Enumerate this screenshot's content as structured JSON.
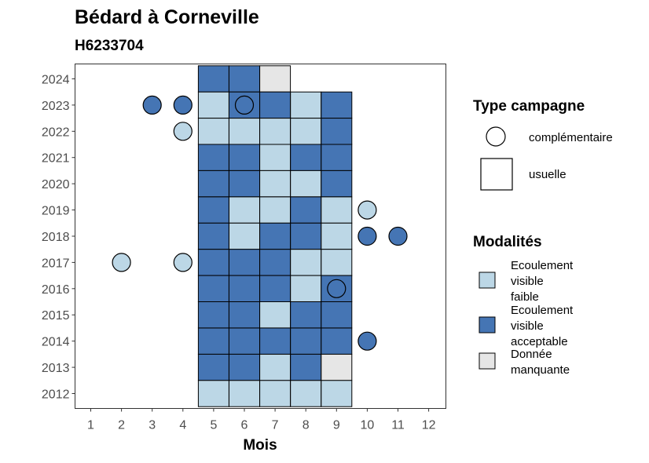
{
  "chart_data": {
    "type": "heatmap",
    "title": "Bédard à Corneville",
    "subtitle": "H6233704",
    "xlabel": "Mois",
    "ylabel": "",
    "x_ticks": [
      "1",
      "2",
      "3",
      "4",
      "5",
      "6",
      "7",
      "8",
      "9",
      "10",
      "11",
      "12"
    ],
    "y_ticks": [
      "2012",
      "2013",
      "2014",
      "2015",
      "2016",
      "2017",
      "2018",
      "2019",
      "2020",
      "2021",
      "2022",
      "2023",
      "2024"
    ],
    "xlim": [
      0.5,
      12.5
    ],
    "ylim": [
      2011.5,
      2024.5
    ],
    "colors": {
      "faible": "#bcd7e6",
      "acceptable": "#4575b4",
      "manquante": "#e6e6e6"
    },
    "legend_type": {
      "title": "Type campagne",
      "entries": [
        {
          "key": "circle",
          "label": "complémentaire"
        },
        {
          "key": "square",
          "label": "usuelle"
        }
      ]
    },
    "legend_modalites": {
      "title": "Modalités",
      "entries": [
        {
          "key": "faible",
          "lines": [
            "Ecoulement",
            "visible",
            "faible"
          ]
        },
        {
          "key": "acceptable",
          "lines": [
            "Ecoulement",
            "visible",
            "acceptable"
          ]
        },
        {
          "key": "manquante",
          "lines": [
            "Donnée",
            "manquante"
          ]
        }
      ]
    },
    "tiles": [
      {
        "year": 2024,
        "month": 5,
        "status": "acceptable"
      },
      {
        "year": 2024,
        "month": 6,
        "status": "acceptable"
      },
      {
        "year": 2024,
        "month": 7,
        "status": "manquante"
      },
      {
        "year": 2023,
        "month": 5,
        "status": "faible"
      },
      {
        "year": 2023,
        "month": 6,
        "status": "acceptable"
      },
      {
        "year": 2023,
        "month": 7,
        "status": "acceptable"
      },
      {
        "year": 2023,
        "month": 8,
        "status": "faible"
      },
      {
        "year": 2023,
        "month": 9,
        "status": "acceptable"
      },
      {
        "year": 2022,
        "month": 5,
        "status": "faible"
      },
      {
        "year": 2022,
        "month": 6,
        "status": "faible"
      },
      {
        "year": 2022,
        "month": 7,
        "status": "faible"
      },
      {
        "year": 2022,
        "month": 8,
        "status": "faible"
      },
      {
        "year": 2022,
        "month": 9,
        "status": "acceptable"
      },
      {
        "year": 2021,
        "month": 5,
        "status": "acceptable"
      },
      {
        "year": 2021,
        "month": 6,
        "status": "acceptable"
      },
      {
        "year": 2021,
        "month": 7,
        "status": "faible"
      },
      {
        "year": 2021,
        "month": 8,
        "status": "acceptable"
      },
      {
        "year": 2021,
        "month": 9,
        "status": "acceptable"
      },
      {
        "year": 2020,
        "month": 5,
        "status": "acceptable"
      },
      {
        "year": 2020,
        "month": 6,
        "status": "acceptable"
      },
      {
        "year": 2020,
        "month": 7,
        "status": "faible"
      },
      {
        "year": 2020,
        "month": 8,
        "status": "faible"
      },
      {
        "year": 2020,
        "month": 9,
        "status": "acceptable"
      },
      {
        "year": 2019,
        "month": 5,
        "status": "acceptable"
      },
      {
        "year": 2019,
        "month": 6,
        "status": "faible"
      },
      {
        "year": 2019,
        "month": 7,
        "status": "faible"
      },
      {
        "year": 2019,
        "month": 8,
        "status": "acceptable"
      },
      {
        "year": 2019,
        "month": 9,
        "status": "faible"
      },
      {
        "year": 2018,
        "month": 5,
        "status": "acceptable"
      },
      {
        "year": 2018,
        "month": 6,
        "status": "faible"
      },
      {
        "year": 2018,
        "month": 7,
        "status": "acceptable"
      },
      {
        "year": 2018,
        "month": 8,
        "status": "acceptable"
      },
      {
        "year": 2018,
        "month": 9,
        "status": "faible"
      },
      {
        "year": 2017,
        "month": 5,
        "status": "acceptable"
      },
      {
        "year": 2017,
        "month": 6,
        "status": "acceptable"
      },
      {
        "year": 2017,
        "month": 7,
        "status": "acceptable"
      },
      {
        "year": 2017,
        "month": 8,
        "status": "faible"
      },
      {
        "year": 2017,
        "month": 9,
        "status": "faible"
      },
      {
        "year": 2016,
        "month": 5,
        "status": "acceptable"
      },
      {
        "year": 2016,
        "month": 6,
        "status": "acceptable"
      },
      {
        "year": 2016,
        "month": 7,
        "status": "acceptable"
      },
      {
        "year": 2016,
        "month": 8,
        "status": "faible"
      },
      {
        "year": 2016,
        "month": 9,
        "status": "acceptable"
      },
      {
        "year": 2015,
        "month": 5,
        "status": "acceptable"
      },
      {
        "year": 2015,
        "month": 6,
        "status": "acceptable"
      },
      {
        "year": 2015,
        "month": 7,
        "status": "faible"
      },
      {
        "year": 2015,
        "month": 8,
        "status": "acceptable"
      },
      {
        "year": 2015,
        "month": 9,
        "status": "acceptable"
      },
      {
        "year": 2014,
        "month": 5,
        "status": "acceptable"
      },
      {
        "year": 2014,
        "month": 6,
        "status": "acceptable"
      },
      {
        "year": 2014,
        "month": 7,
        "status": "acceptable"
      },
      {
        "year": 2014,
        "month": 8,
        "status": "acceptable"
      },
      {
        "year": 2014,
        "month": 9,
        "status": "acceptable"
      },
      {
        "year": 2013,
        "month": 5,
        "status": "acceptable"
      },
      {
        "year": 2013,
        "month": 6,
        "status": "acceptable"
      },
      {
        "year": 2013,
        "month": 7,
        "status": "faible"
      },
      {
        "year": 2013,
        "month": 8,
        "status": "acceptable"
      },
      {
        "year": 2013,
        "month": 9,
        "status": "manquante"
      },
      {
        "year": 2012,
        "month": 5,
        "status": "faible"
      },
      {
        "year": 2012,
        "month": 6,
        "status": "faible"
      },
      {
        "year": 2012,
        "month": 7,
        "status": "faible"
      },
      {
        "year": 2012,
        "month": 8,
        "status": "faible"
      },
      {
        "year": 2012,
        "month": 9,
        "status": "faible"
      }
    ],
    "points": [
      {
        "year": 2023,
        "month": 3,
        "status": "acceptable"
      },
      {
        "year": 2023,
        "month": 4,
        "status": "acceptable"
      },
      {
        "year": 2023,
        "month": 6,
        "status": "acceptable"
      },
      {
        "year": 2022,
        "month": 4,
        "status": "faible"
      },
      {
        "year": 2019,
        "month": 10,
        "status": "faible"
      },
      {
        "year": 2018,
        "month": 10,
        "status": "acceptable"
      },
      {
        "year": 2018,
        "month": 11,
        "status": "acceptable"
      },
      {
        "year": 2017,
        "month": 2,
        "status": "faible"
      },
      {
        "year": 2017,
        "month": 4,
        "status": "faible"
      },
      {
        "year": 2016,
        "month": 9,
        "status": "acceptable"
      },
      {
        "year": 2014,
        "month": 10,
        "status": "acceptable"
      }
    ]
  }
}
